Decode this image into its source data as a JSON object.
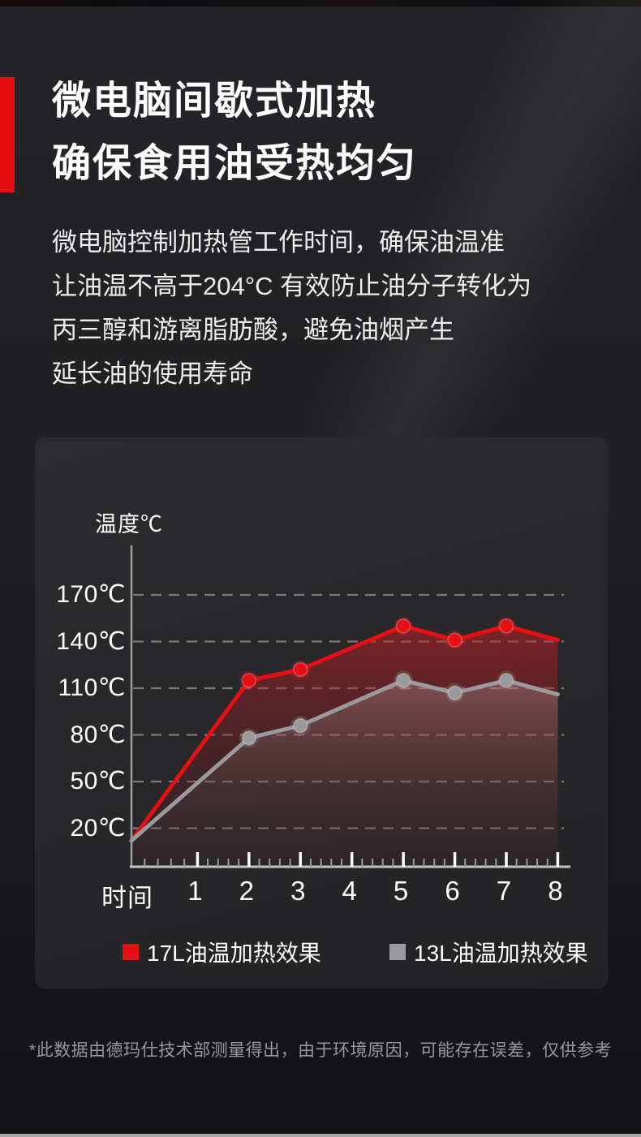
{
  "page": {
    "accent_red": "#e60f13",
    "background_dark": "#1c1c1f"
  },
  "header": {
    "title_line1": "微电脑间歇式加热",
    "title_line2": "确保食用油受热均匀"
  },
  "description": {
    "lines": [
      "微电脑控制加热管工作时间，确保油温准",
      "让油温不高于204°C 有效防止油分子转化为",
      "丙三醇和游离脂肪酸，避免油烟产生",
      "延长油的使用寿命"
    ]
  },
  "chart_data": {
    "type": "line",
    "y_axis_title": "温度℃",
    "x_axis_title": "时间",
    "y_tick_labels": [
      "170℃",
      "140℃",
      "110℃",
      "80℃",
      "50℃",
      "20℃"
    ],
    "y_tick_values": [
      170,
      140,
      110,
      80,
      50,
      20
    ],
    "x_tick_labels": [
      "1",
      "2",
      "3",
      "4",
      "5",
      "6",
      "7",
      "8"
    ],
    "x_range": [
      0,
      8
    ],
    "y_axis_range_display": [
      12,
      180
    ],
    "grid": "horizontal dashed lines at each y tick",
    "legend_position": "bottom",
    "series": [
      {
        "name": "17L油温加热效果",
        "color": "#e60f13",
        "x": [
          0,
          2,
          3,
          5,
          6,
          7,
          8
        ],
        "y": [
          12,
          115,
          122,
          150,
          141,
          150,
          141
        ],
        "markers_at_x": [
          2,
          3,
          5,
          6,
          7
        ]
      },
      {
        "name": "13L油温加热效果",
        "color": "#9a9a9c",
        "x": [
          0,
          2,
          3,
          5,
          6,
          7,
          8
        ],
        "y": [
          12,
          78,
          86,
          115,
          107,
          115,
          106
        ],
        "markers_at_x": [
          2,
          3,
          5,
          6,
          7
        ]
      }
    ]
  },
  "legend": {
    "items": [
      {
        "label": "17L油温加热效果",
        "color": "#e60f13"
      },
      {
        "label": "13L油温加热效果",
        "color": "#9a9a9c"
      }
    ]
  },
  "footnote": "*此数据由德玛仕技术部测量得出，由于环境原因，可能存在误差，仅供参考"
}
